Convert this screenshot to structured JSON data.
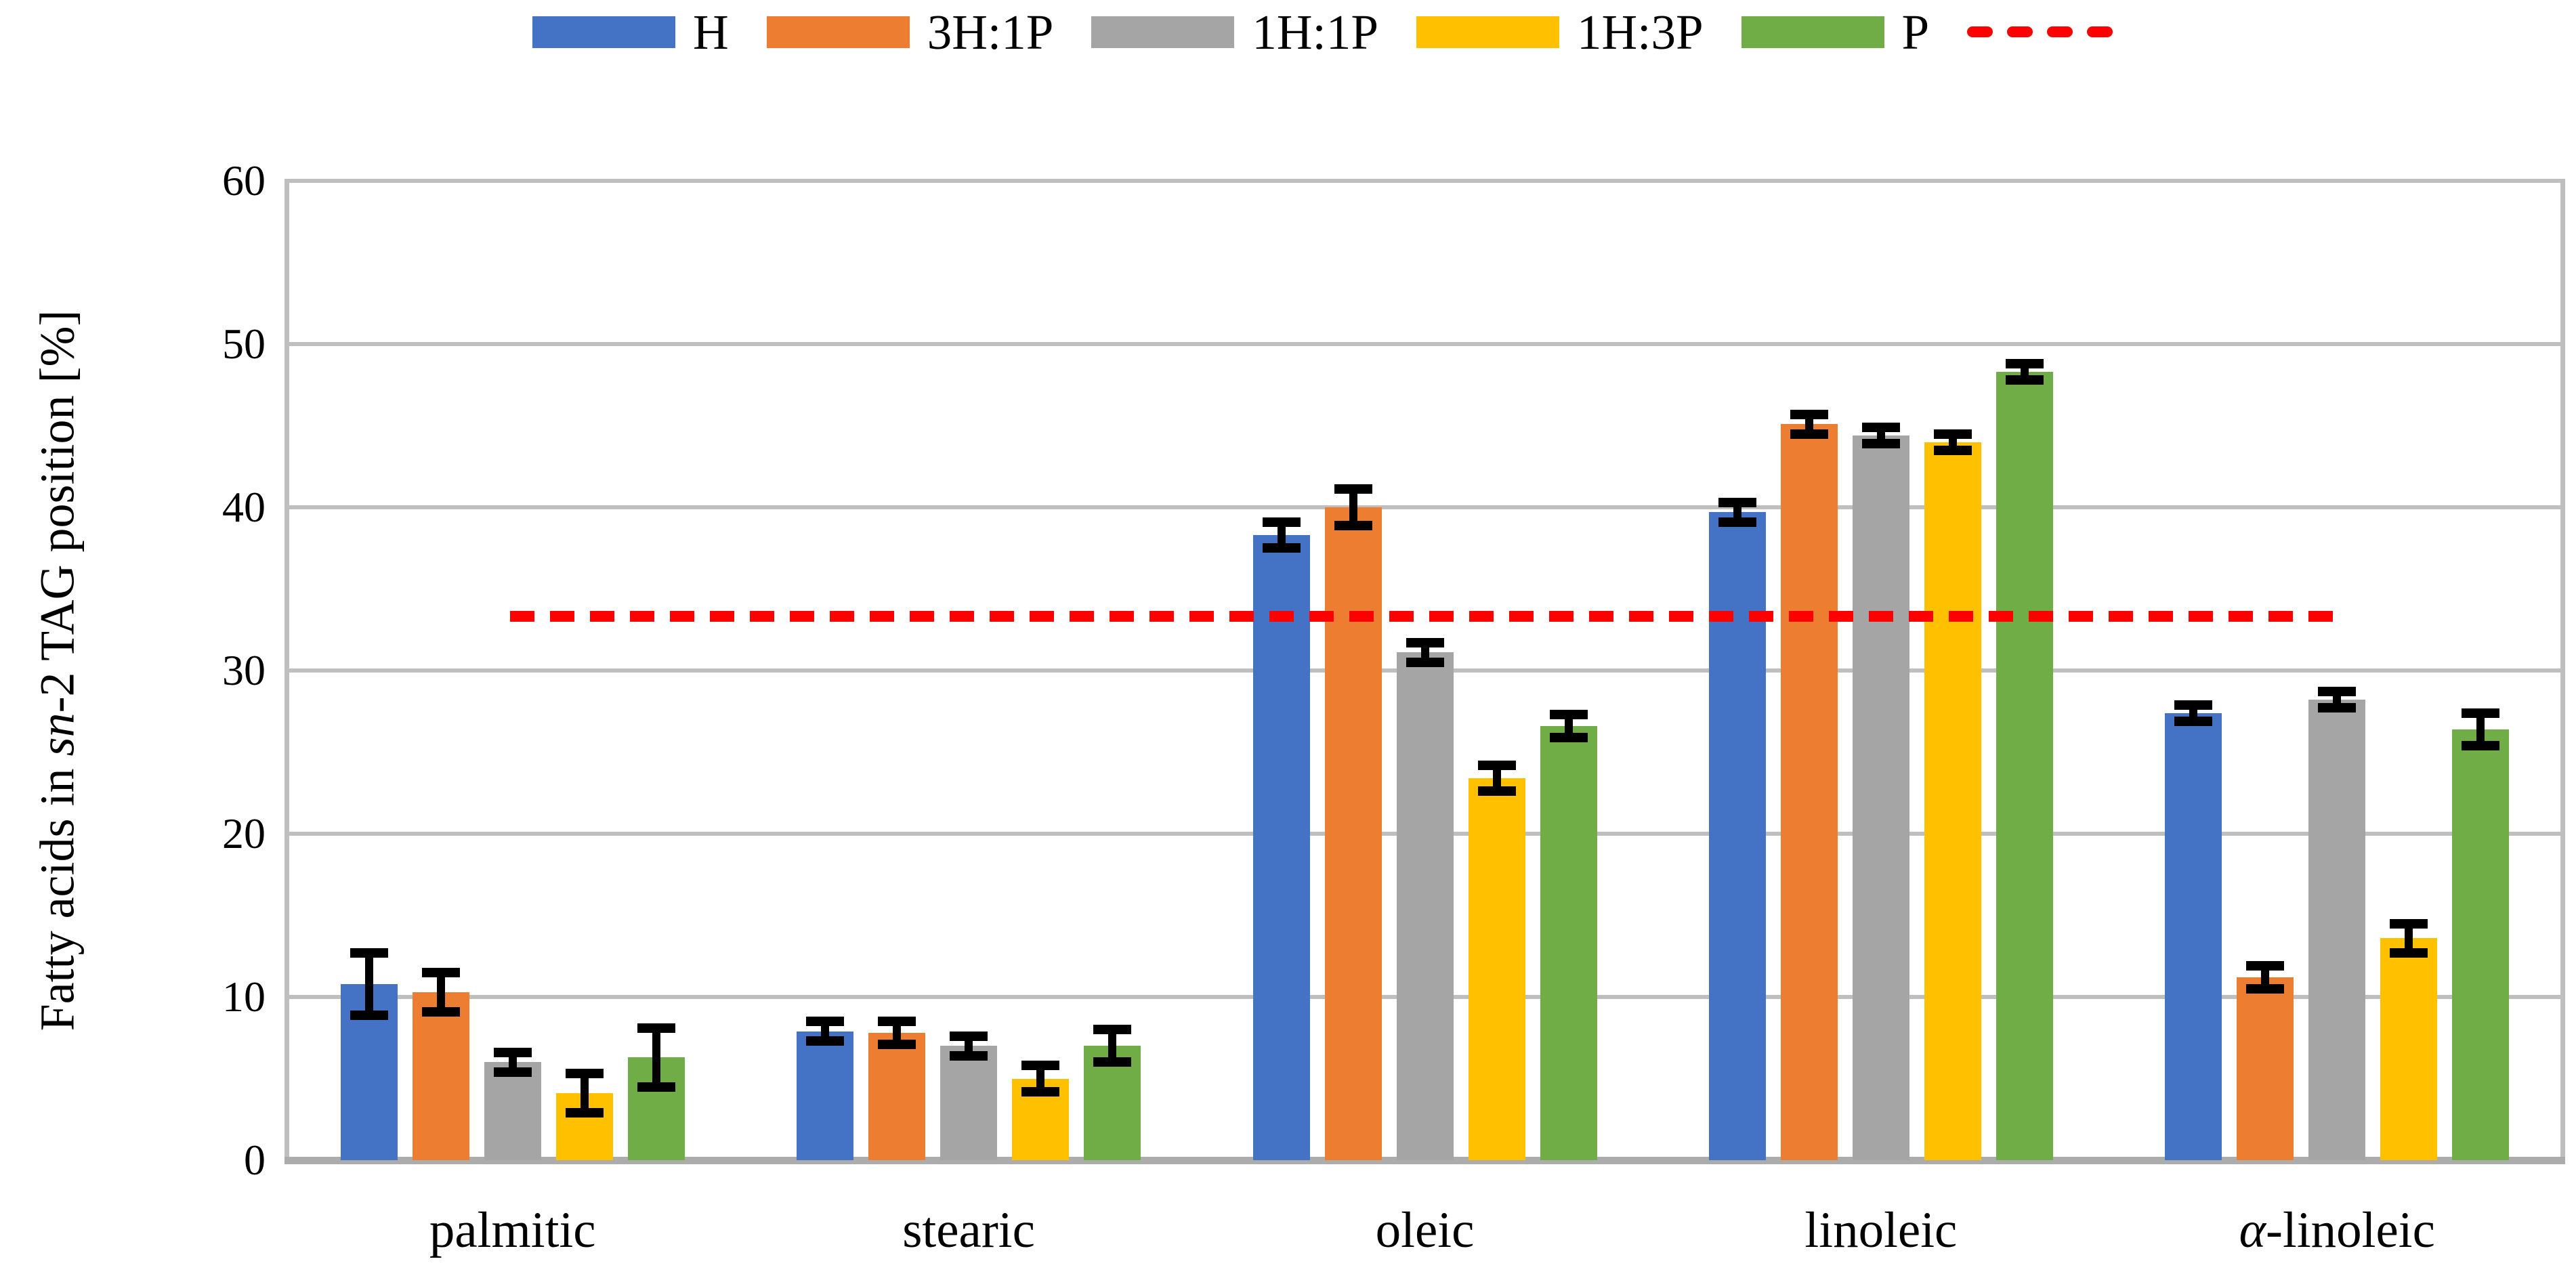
{
  "legend": {
    "items": [
      {
        "label": "H",
        "color": "#4472C4"
      },
      {
        "label": "3H:1P",
        "color": "#ED7D31"
      },
      {
        "label": "1H:1P",
        "color": "#A5A5A5"
      },
      {
        "label": "1H:3P",
        "color": "#FFC000"
      },
      {
        "label": "P",
        "color": "#70AD47"
      }
    ],
    "reference_line_sample": {
      "color": "#FF0000",
      "style": "dashed",
      "dash_count": 4
    }
  },
  "y_axis": {
    "title_parts": [
      "Fatty acids in ",
      "sn",
      "-2 TAG position [%]"
    ],
    "ticks": [
      0,
      10,
      20,
      30,
      40,
      50,
      60
    ]
  },
  "chart_data": {
    "type": "bar",
    "title": "",
    "xlabel": "",
    "ylabel": "Fatty acids in sn-2 TAG position [%]",
    "ylim": [
      0,
      60
    ],
    "grid": true,
    "legend_position": "top",
    "categories": [
      "palmitic",
      "stearic",
      "oleic",
      "linoleic",
      "α-linoleic"
    ],
    "series": [
      {
        "name": "H",
        "color": "#4472C4",
        "values": [
          10.8,
          7.9,
          38.3,
          39.7,
          27.4
        ],
        "errors": [
          1.9,
          0.6,
          0.8,
          0.6,
          0.5
        ]
      },
      {
        "name": "3H:1P",
        "color": "#ED7D31",
        "values": [
          10.3,
          7.8,
          40.0,
          45.1,
          11.2
        ],
        "errors": [
          1.2,
          0.7,
          1.1,
          0.6,
          0.7
        ]
      },
      {
        "name": "1H:1P",
        "color": "#A5A5A5",
        "values": [
          6.0,
          7.0,
          31.1,
          44.4,
          28.2
        ],
        "errors": [
          0.6,
          0.6,
          0.6,
          0.5,
          0.5
        ]
      },
      {
        "name": "1H:3P",
        "color": "#FFC000",
        "values": [
          4.1,
          5.0,
          23.4,
          44.0,
          13.6
        ],
        "errors": [
          1.2,
          0.8,
          0.8,
          0.5,
          0.9
        ]
      },
      {
        "name": "P",
        "color": "#70AD47",
        "values": [
          6.3,
          7.0,
          26.6,
          48.3,
          26.4
        ],
        "errors": [
          1.8,
          1.0,
          0.7,
          0.5,
          1.0
        ]
      }
    ],
    "reference_line": {
      "value": 33.3,
      "color": "#FF0000",
      "style": "dashed"
    }
  }
}
